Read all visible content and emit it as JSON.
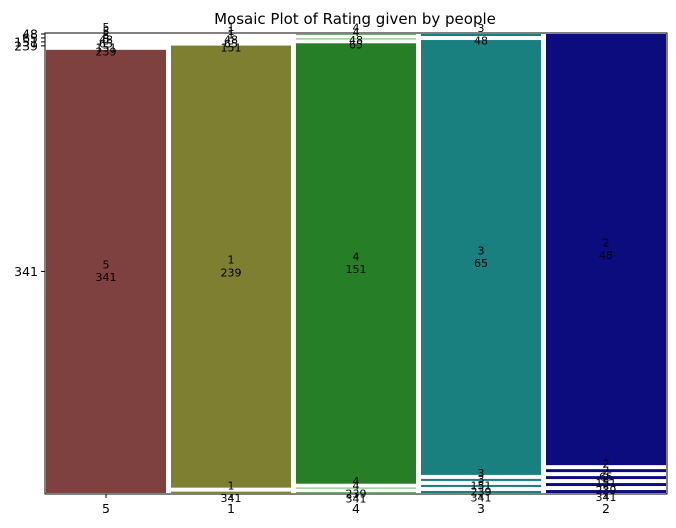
{
  "chart_data": {
    "type": "mosaic",
    "title": "Mosaic Plot of Rating given by people",
    "xlabel": "",
    "ylabel": "",
    "grid": false,
    "legend": "none",
    "categories": [
      "5",
      "1",
      "4",
      "3",
      "2"
    ],
    "series": [
      {
        "name": "5",
        "color": "#7f4040",
        "segments": [
          {
            "value": 341,
            "label": "5\n341"
          },
          {
            "value": 1.5,
            "label": "5\n239"
          },
          {
            "value": 1.5,
            "label": "5\n151"
          },
          {
            "value": 1.5,
            "label": "5\n65"
          },
          {
            "value": 1.5,
            "label": "5\n48"
          }
        ]
      },
      {
        "name": "1",
        "color": "#7f7f32",
        "segments": [
          {
            "value": 1.8,
            "label": "1\n341"
          },
          {
            "value": 239,
            "label": "1\n239"
          },
          {
            "value": 1,
            "label": "1\n151"
          },
          {
            "value": 1,
            "label": "1\n65"
          },
          {
            "value": 1,
            "label": "1\n48"
          }
        ]
      },
      {
        "name": "4",
        "color": "#267f26",
        "segments": [
          {
            "value": 0.9,
            "label": "4\n341"
          },
          {
            "value": 0.9,
            "label": "4\n239"
          },
          {
            "value": 151,
            "label": "4\n151"
          },
          {
            "value": 0.9,
            "label": "4\n65"
          },
          {
            "value": 0.9,
            "label": "4\n48"
          }
        ]
      },
      {
        "name": "3",
        "color": "#197f7f",
        "segments": [
          {
            "value": 0.6,
            "label": "3\n341"
          },
          {
            "value": 0.6,
            "label": "3\n239"
          },
          {
            "value": 0.6,
            "label": "3\n151"
          },
          {
            "value": 65,
            "label": "3\n65"
          },
          {
            "value": 0.6,
            "label": "3\n48"
          }
        ]
      },
      {
        "name": "2",
        "color": "#0c0c7f",
        "segments": [
          {
            "value": 0.55,
            "label": "2\n341"
          },
          {
            "value": 0.55,
            "label": "2\n239"
          },
          {
            "value": 0.55,
            "label": "2\n151"
          },
          {
            "value": 0.55,
            "label": "2\n65"
          },
          {
            "value": 48,
            "label": "2\n48"
          }
        ]
      }
    ],
    "y_ticks": [
      "341",
      "239",
      "151",
      "65",
      "48"
    ],
    "ylim": [
      0,
      1
    ]
  }
}
